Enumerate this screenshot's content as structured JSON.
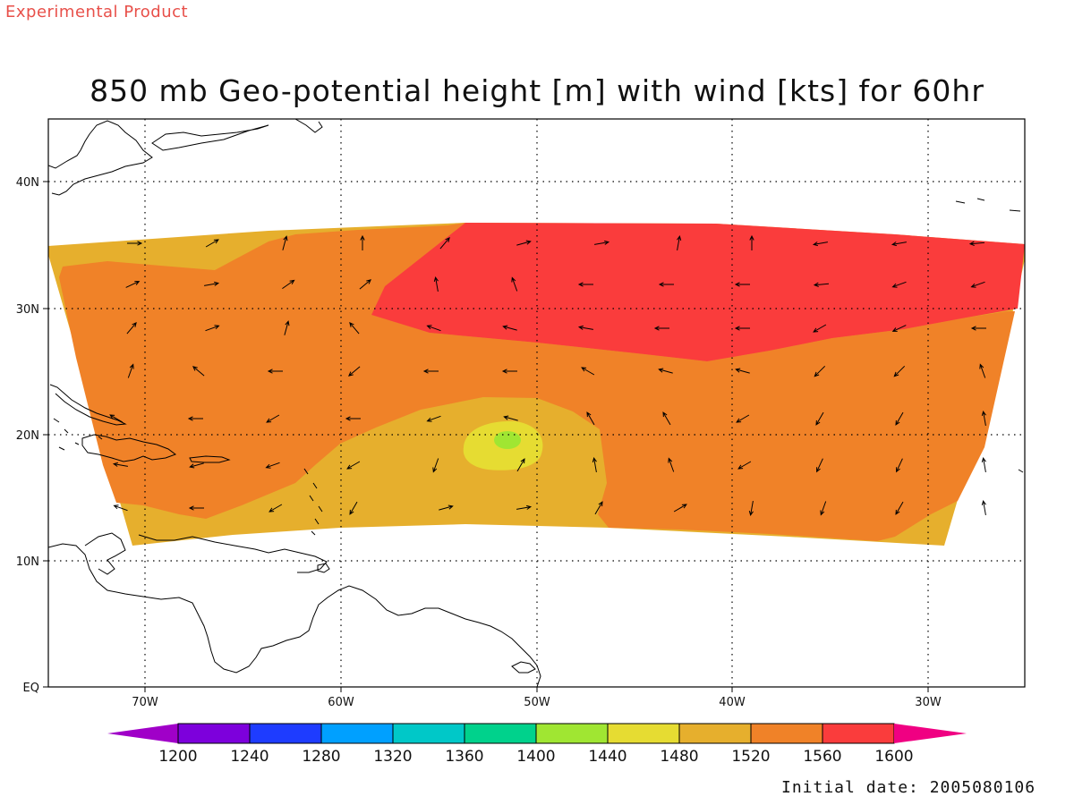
{
  "header": {
    "experimental_label": "Experimental Product"
  },
  "title": "850 mb Geo-potential height [m] with wind [kts] for 60hr",
  "footer": {
    "initial_date": "Initial date: 2005080106"
  },
  "axes": {
    "lon_labels": [
      "70W",
      "60W",
      "50W",
      "40W",
      "30W"
    ],
    "lon_values": [
      -70,
      -60,
      -50,
      -40,
      -30
    ],
    "lat_labels": [
      "EQ",
      "10N",
      "20N",
      "30N",
      "40N"
    ],
    "lat_values": [
      0,
      10,
      20,
      30,
      40
    ],
    "lon_range": [
      -75,
      -25
    ],
    "lat_range": [
      0,
      45
    ]
  },
  "colorbar": {
    "levels": [
      "1200",
      "1240",
      "1280",
      "1320",
      "1360",
      "1400",
      "1440",
      "1480",
      "1520",
      "1560",
      "1600"
    ],
    "colors": [
      "#a000c8",
      "#7d00dc",
      "#1e3cff",
      "#00a0ff",
      "#00c8c8",
      "#00d28c",
      "#a0e632",
      "#e6dc32",
      "#e6af2d",
      "#f08228",
      "#fa3c3c",
      "#f00082"
    ]
  },
  "fill_colors": {
    "c1480": "#e6dc32",
    "c1440": "#a0e632",
    "c1520": "#e6af2d",
    "c1560": "#f08228",
    "c1600": "#fa3c3c"
  }
}
